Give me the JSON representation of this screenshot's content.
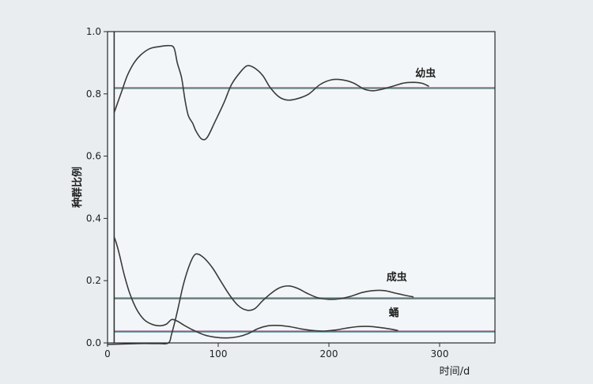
{
  "chart_data": {
    "type": "line",
    "title": "",
    "xlabel": "时间/d",
    "ylabel": "种群比例",
    "xlim": [
      0,
      350
    ],
    "ylim": [
      0.0,
      1.0
    ],
    "x_ticks": [
      {
        "value": 0,
        "label": "0"
      },
      {
        "value": 100,
        "label": "100"
      },
      {
        "value": 200,
        "label": "200"
      },
      {
        "value": 300,
        "label": "300"
      }
    ],
    "y_ticks": [
      {
        "value": 0.0,
        "label": "0.0"
      },
      {
        "value": 0.2,
        "label": "0.2"
      },
      {
        "value": 0.4,
        "label": "0.4"
      },
      {
        "value": 0.6,
        "label": "0.6"
      },
      {
        "value": 0.8,
        "label": "0.8"
      },
      {
        "value": 1.0,
        "label": "1.0"
      }
    ],
    "grid": false,
    "series": [
      {
        "name": "幼虫",
        "color": "#3a3a3a",
        "label_at": [
          278,
          0.855
        ],
        "points": [
          [
            6,
            0.74
          ],
          [
            9,
            0.77
          ],
          [
            13,
            0.81
          ],
          [
            18,
            0.86
          ],
          [
            24,
            0.9
          ],
          [
            30,
            0.925
          ],
          [
            38,
            0.945
          ],
          [
            47,
            0.952
          ],
          [
            55,
            0.955
          ],
          [
            60,
            0.948
          ],
          [
            63,
            0.9
          ],
          [
            67,
            0.85
          ],
          [
            70,
            0.78
          ],
          [
            73,
            0.73
          ],
          [
            77,
            0.705
          ],
          [
            80,
            0.68
          ],
          [
            85,
            0.655
          ],
          [
            90,
            0.66
          ],
          [
            97,
            0.71
          ],
          [
            105,
            0.77
          ],
          [
            112,
            0.83
          ],
          [
            120,
            0.87
          ],
          [
            126,
            0.89
          ],
          [
            132,
            0.885
          ],
          [
            140,
            0.86
          ],
          [
            147,
            0.82
          ],
          [
            155,
            0.79
          ],
          [
            163,
            0.78
          ],
          [
            172,
            0.785
          ],
          [
            182,
            0.8
          ],
          [
            192,
            0.83
          ],
          [
            202,
            0.845
          ],
          [
            212,
            0.845
          ],
          [
            222,
            0.835
          ],
          [
            232,
            0.815
          ],
          [
            240,
            0.81
          ],
          [
            248,
            0.815
          ],
          [
            258,
            0.825
          ],
          [
            268,
            0.835
          ],
          [
            276,
            0.837
          ],
          [
            284,
            0.834
          ],
          [
            290,
            0.825
          ]
        ]
      },
      {
        "name": "成虫",
        "color": "#3a3a3a",
        "label_at": [
          252,
          0.2
        ],
        "points": [
          [
            0,
            -0.005
          ],
          [
            28,
            -0.002
          ],
          [
            45,
            -0.002
          ],
          [
            55,
            0.0
          ],
          [
            58,
            0.03
          ],
          [
            63,
            0.1
          ],
          [
            68,
            0.18
          ],
          [
            73,
            0.24
          ],
          [
            78,
            0.28
          ],
          [
            82,
            0.285
          ],
          [
            88,
            0.27
          ],
          [
            95,
            0.24
          ],
          [
            102,
            0.2
          ],
          [
            110,
            0.155
          ],
          [
            118,
            0.12
          ],
          [
            126,
            0.105
          ],
          [
            133,
            0.11
          ],
          [
            140,
            0.135
          ],
          [
            148,
            0.16
          ],
          [
            156,
            0.178
          ],
          [
            164,
            0.183
          ],
          [
            172,
            0.175
          ],
          [
            180,
            0.16
          ],
          [
            190,
            0.145
          ],
          [
            200,
            0.14
          ],
          [
            210,
            0.142
          ],
          [
            220,
            0.15
          ],
          [
            230,
            0.162
          ],
          [
            240,
            0.168
          ],
          [
            250,
            0.168
          ],
          [
            260,
            0.16
          ],
          [
            270,
            0.152
          ],
          [
            276,
            0.148
          ]
        ]
      },
      {
        "name": "蛹",
        "color": "#3a3a3a",
        "label_at": [
          254,
          0.086
        ],
        "points": [
          [
            6,
            0.34
          ],
          [
            8,
            0.32
          ],
          [
            11,
            0.28
          ],
          [
            15,
            0.22
          ],
          [
            20,
            0.16
          ],
          [
            26,
            0.11
          ],
          [
            33,
            0.075
          ],
          [
            40,
            0.06
          ],
          [
            47,
            0.055
          ],
          [
            53,
            0.06
          ],
          [
            58,
            0.075
          ],
          [
            63,
            0.07
          ],
          [
            70,
            0.055
          ],
          [
            78,
            0.04
          ],
          [
            88,
            0.025
          ],
          [
            98,
            0.018
          ],
          [
            108,
            0.016
          ],
          [
            118,
            0.02
          ],
          [
            127,
            0.03
          ],
          [
            136,
            0.046
          ],
          [
            145,
            0.055
          ],
          [
            155,
            0.056
          ],
          [
            165,
            0.052
          ],
          [
            175,
            0.045
          ],
          [
            185,
            0.04
          ],
          [
            195,
            0.038
          ],
          [
            205,
            0.041
          ],
          [
            215,
            0.047
          ],
          [
            225,
            0.052
          ],
          [
            235,
            0.053
          ],
          [
            245,
            0.05
          ],
          [
            255,
            0.045
          ],
          [
            262,
            0.04
          ]
        ]
      }
    ],
    "reference_lines": [
      {
        "y": 0.82,
        "x_range": [
          6,
          350
        ],
        "color": "#a64a4a"
      },
      {
        "y": 0.82,
        "x_range": [
          6,
          350
        ],
        "color": "#3d8a96"
      },
      {
        "y": 0.145,
        "x_range": [
          6,
          350
        ],
        "color": "#3d8a96"
      },
      {
        "y": 0.145,
        "x_range": [
          6,
          350
        ],
        "color": "#555555"
      },
      {
        "y": 0.038,
        "x_range": [
          6,
          350
        ],
        "color": "#8a3a6a"
      },
      {
        "y": 0.038,
        "x_range": [
          6,
          350
        ],
        "color": "#3d8a96"
      },
      {
        "y": 0.0,
        "x_range": [
          0,
          350
        ],
        "color": "#3d8a96"
      }
    ],
    "vertical_lines": [
      {
        "x": 6,
        "color": "#333333"
      }
    ]
  }
}
